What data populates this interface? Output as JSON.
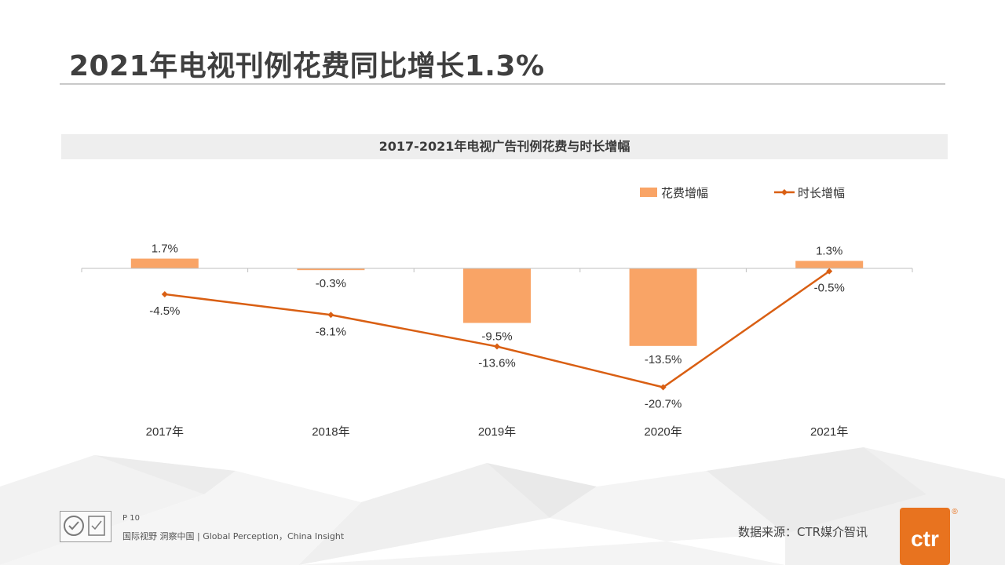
{
  "page": {
    "title": "2021年电视刊例花费同比增长1.3%",
    "page_number": "P 10",
    "slogan": "国际视野  洞察中国 | Global Perception，China Insight",
    "source": "数据来源：CTR媒介智讯",
    "logo_text": "ctr",
    "logo_mark": "®"
  },
  "colors": {
    "bar": "#F9A466",
    "line": "#D95F13",
    "axis": "#bfbfbf",
    "title": "#3f3f3f"
  },
  "chart_data": {
    "type": "bar",
    "title": "2017-2021年电视广告刊例花费与时长增幅",
    "categories": [
      "2017年",
      "2018年",
      "2019年",
      "2020年",
      "2021年"
    ],
    "series": [
      {
        "name": "花费增幅",
        "type": "bar",
        "values": [
          1.7,
          -0.3,
          -9.5,
          -13.5,
          1.3
        ],
        "labels": [
          "1.7%",
          "-0.3%",
          "-9.5%",
          "-13.5%",
          "1.3%"
        ]
      },
      {
        "name": "时长增幅",
        "type": "line",
        "values": [
          -4.5,
          -8.1,
          -13.6,
          -20.7,
          -0.5
        ],
        "labels": [
          "-4.5%",
          "-8.1%",
          "-13.6%",
          "-20.7%",
          "-0.5%"
        ]
      }
    ],
    "legend_position": "top-right",
    "ylim": [
      -25,
      5
    ],
    "grid": false
  }
}
